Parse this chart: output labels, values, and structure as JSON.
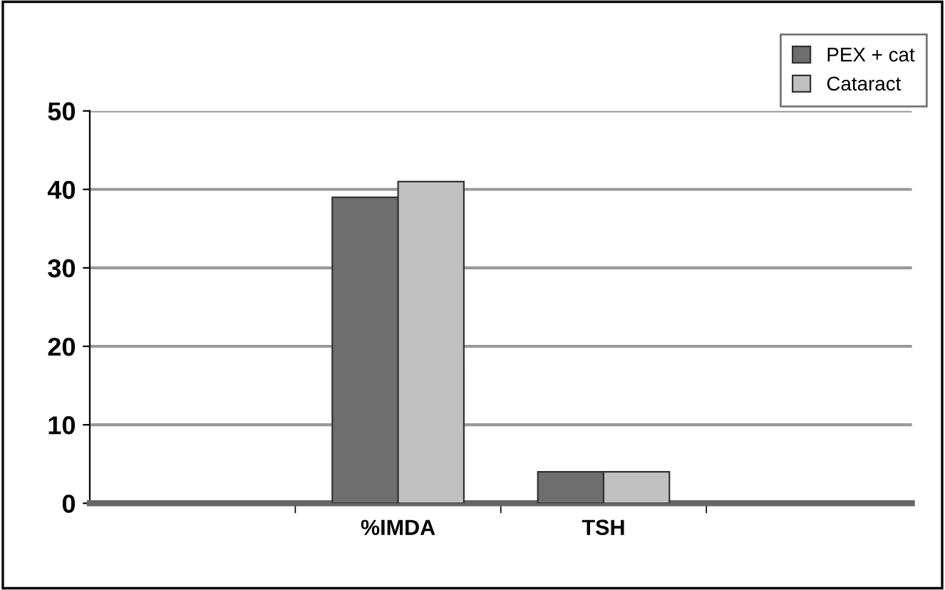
{
  "chart_data": {
    "type": "bar",
    "categories": [
      null,
      "%IMDA",
      "TSH",
      null
    ],
    "series": [
      {
        "name": "PEX + cat",
        "color": "#6e6e6e",
        "values": [
          null,
          39,
          4,
          null
        ]
      },
      {
        "name": "Cataract",
        "color": "#c0c0c0",
        "values": [
          null,
          41,
          4,
          null
        ]
      }
    ],
    "ylim": [
      0,
      50
    ],
    "yticks": [
      0,
      10,
      20,
      30,
      40,
      50
    ],
    "grid": "y",
    "legend": "top right"
  }
}
